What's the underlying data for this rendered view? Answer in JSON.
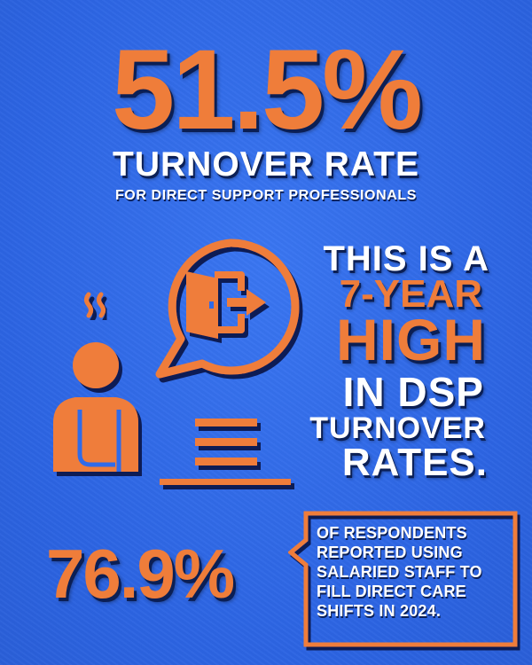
{
  "headline": {
    "percent": "51.5%",
    "title": "TURNOVER RATE",
    "subtitle": "FOR DIRECT SUPPORT PROFESSIONALS"
  },
  "highlight": {
    "line1": "THIS IS A",
    "line2": "7-YEAR",
    "line3": "HIGH",
    "line4": "IN DSP",
    "line5": "TURNOVER",
    "line6": "RATES."
  },
  "secondary": {
    "percent": "76.9%",
    "callout_lines": [
      "OF RESPONDENTS",
      "REPORTED USING",
      "SALARIED STAFF TO",
      "FILL DIRECT CARE",
      "SHIFTS IN 2024."
    ]
  },
  "icons": {
    "person": "stressed-worker-icon",
    "exit": "exit-door-icon",
    "bubble": "speech-bubble-icon",
    "desk": "desk-icon"
  },
  "colors": {
    "background": "#2f6bea",
    "accent": "#ef7d3a",
    "text": "#ffffff",
    "shadow": "#0b1f55"
  }
}
